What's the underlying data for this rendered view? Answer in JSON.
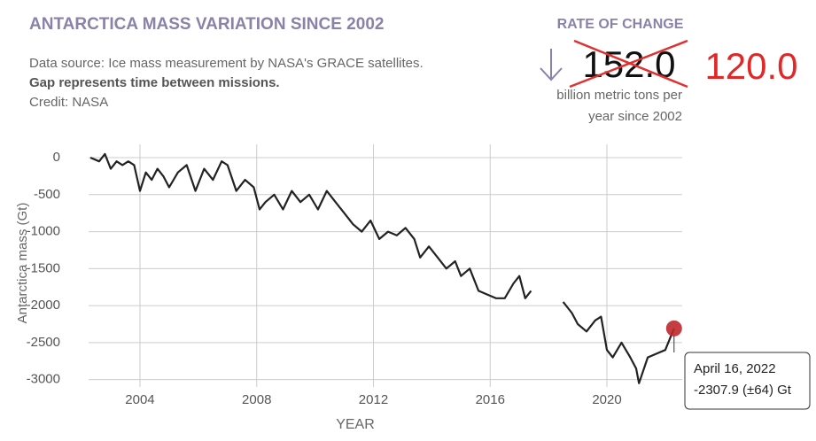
{
  "chart_data": {
    "type": "line",
    "title": "ANTARCTICA MASS VARIATION SINCE 2002",
    "subtitle": [
      "Data source: Ice mass measurement by NASA's GRACE satellites.",
      "Gap represents time between missions.",
      "Credit: NASA"
    ],
    "rate_heading": "RATE OF CHANGE",
    "rate_old": "152.0",
    "rate_new": "120.0",
    "rate_unit": [
      "billion metric tons per",
      "year since 2002"
    ],
    "y_label": "Antarctica mass (Gt)",
    "x_label": "YEAR",
    "color": "#222222",
    "x": [
      2002.3,
      2002.6,
      2002.8,
      2003.0,
      2003.2,
      2003.4,
      2003.6,
      2003.8,
      2004.0,
      2004.2,
      2004.4,
      2004.6,
      2004.8,
      2005.0,
      2005.3,
      2005.6,
      2005.9,
      2006.2,
      2006.5,
      2006.8,
      2007.0,
      2007.3,
      2007.6,
      2007.9,
      2008.1,
      2008.3,
      2008.6,
      2008.9,
      2009.2,
      2009.5,
      2009.8,
      2010.1,
      2010.4,
      2010.7,
      2011.0,
      2011.3,
      2011.6,
      2011.9,
      2012.2,
      2012.5,
      2012.8,
      2013.1,
      2013.4,
      2013.6,
      2013.9,
      2014.2,
      2014.5,
      2014.8,
      2015.0,
      2015.3,
      2015.6,
      2015.9,
      2016.2,
      2016.5,
      2016.8,
      2017.0,
      2017.2,
      2017.4,
      2018.0,
      2018.5,
      2018.8,
      2019.0,
      2019.3,
      2019.6,
      2019.8,
      2020.0,
      2020.2,
      2020.5,
      2020.8,
      2021.0,
      2021.1,
      2021.4,
      2021.7,
      2022.0,
      2022.3
    ],
    "values": [
      0,
      -50,
      50,
      -150,
      -50,
      -100,
      -50,
      -100,
      -450,
      -200,
      -300,
      -150,
      -250,
      -400,
      -200,
      -100,
      -450,
      -150,
      -300,
      -50,
      -100,
      -450,
      -300,
      -400,
      -700,
      -600,
      -500,
      -700,
      -450,
      -600,
      -500,
      -700,
      -450,
      -600,
      -750,
      -900,
      -1000,
      -850,
      -1100,
      -1000,
      -1050,
      -950,
      -1100,
      -1350,
      -1200,
      -1350,
      -1500,
      -1400,
      -1600,
      -1500,
      -1800,
      -1850,
      -1900,
      -1900,
      -1700,
      -1600,
      -1900,
      -1800,
      null,
      -1950,
      -2100,
      -2250,
      -2350,
      -2200,
      -2150,
      -2600,
      -2700,
      -2500,
      -2700,
      -2850,
      -3050,
      -2700,
      -2650,
      -2600,
      -2307.9
    ],
    "xlim": [
      2002.24,
      2022.58
    ],
    "ylim": [
      -3100,
      180
    ],
    "xticks": [
      2004,
      2008,
      2012,
      2016,
      2020
    ],
    "yticks": [
      0,
      -500,
      -1000,
      -1500,
      -2000,
      -2500,
      -3000
    ],
    "grid": true,
    "tooltip": {
      "date": "April 16, 2022",
      "label": "-2307.9 (±64) Gt"
    }
  }
}
